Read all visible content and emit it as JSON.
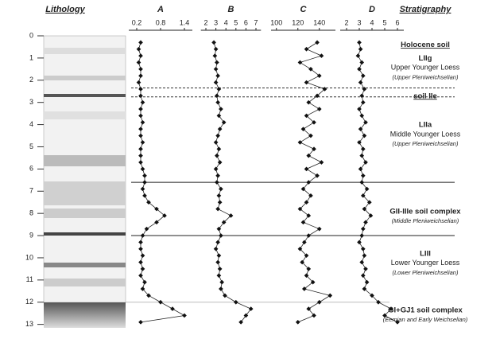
{
  "lithology_title": "Lithology",
  "stratigraphy_title": "Stratigraphy",
  "depth": {
    "ylim": [
      0,
      13.3
    ],
    "yticks": [
      0,
      1,
      2,
      3,
      4,
      5,
      6,
      7,
      8,
      9,
      10,
      11,
      12,
      13
    ],
    "values": [
      0.3,
      0.6,
      0.9,
      1.2,
      1.5,
      1.8,
      2.1,
      2.4,
      2.7,
      3.0,
      3.3,
      3.6,
      3.9,
      4.2,
      4.5,
      4.8,
      5.1,
      5.4,
      5.7,
      6.0,
      6.3,
      6.6,
      6.9,
      7.2,
      7.5,
      7.8,
      8.1,
      8.4,
      8.7,
      9.0,
      9.3,
      9.6,
      9.9,
      10.2,
      10.5,
      10.8,
      11.1,
      11.4,
      11.7,
      12.0,
      12.3,
      12.6,
      12.9
    ]
  },
  "chart_data": [
    {
      "type": "line",
      "title": "A",
      "xlim": [
        0,
        1.6
      ],
      "xticks": [
        0.2,
        0.8,
        1.4
      ],
      "values": [
        0.3,
        0.25,
        0.3,
        0.25,
        0.3,
        0.3,
        0.25,
        0.3,
        0.3,
        0.35,
        0.3,
        0.3,
        0.35,
        0.3,
        0.3,
        0.35,
        0.3,
        0.3,
        0.3,
        0.35,
        0.4,
        0.4,
        0.35,
        0.4,
        0.5,
        0.7,
        0.9,
        0.7,
        0.45,
        0.35,
        0.3,
        0.3,
        0.35,
        0.3,
        0.35,
        0.3,
        0.4,
        0.35,
        0.5,
        0.8,
        1.1,
        1.4,
        0.3
      ]
    },
    {
      "type": "line",
      "title": "B",
      "xlim": [
        1.5,
        7.5
      ],
      "xticks": [
        2,
        3,
        4,
        5,
        6,
        7
      ],
      "values": [
        2.8,
        3.0,
        2.9,
        3.1,
        3.0,
        3.2,
        3.0,
        3.3,
        3.1,
        3.2,
        3.5,
        3.3,
        3.8,
        3.4,
        3.2,
        3.0,
        3.3,
        3.1,
        3.4,
        3.0,
        3.2,
        3.1,
        3.5,
        3.3,
        3.4,
        3.2,
        4.5,
        3.8,
        3.3,
        3.5,
        3.2,
        3.0,
        3.3,
        3.2,
        3.4,
        3.3,
        3.6,
        3.5,
        3.9,
        5.0,
        6.5,
        6.0,
        5.5
      ]
    },
    {
      "type": "line",
      "title": "C",
      "xlim": [
        95,
        155
      ],
      "xticks": [
        100,
        120,
        140
      ],
      "values": [
        138,
        128,
        142,
        122,
        132,
        140,
        128,
        145,
        138,
        130,
        140,
        128,
        135,
        125,
        132,
        122,
        135,
        130,
        142,
        128,
        138,
        130,
        125,
        132,
        128,
        122,
        130,
        125,
        140,
        130,
        126,
        122,
        128,
        124,
        130,
        128,
        134,
        126,
        150,
        140,
        130,
        135,
        120
      ]
    },
    {
      "type": "line",
      "title": "D",
      "xlim": [
        1.5,
        6.5
      ],
      "xticks": [
        2,
        3,
        4,
        5,
        6
      ],
      "values": [
        3.0,
        3.1,
        2.9,
        3.2,
        3.0,
        3.3,
        3.1,
        3.4,
        3.2,
        3.3,
        3.0,
        3.2,
        3.5,
        3.1,
        3.4,
        3.0,
        3.3,
        3.2,
        3.5,
        3.1,
        3.3,
        3.2,
        3.6,
        3.3,
        3.8,
        3.4,
        3.9,
        3.5,
        3.3,
        3.2,
        3.0,
        3.3,
        3.4,
        3.2,
        3.5,
        3.3,
        3.6,
        3.4,
        4.0,
        4.5,
        5.5,
        5.0,
        6.0
      ]
    }
  ],
  "boundaries": [
    {
      "depth": 2.35,
      "style": "dashed"
    },
    {
      "depth": 2.75,
      "style": "dashed"
    },
    {
      "depth": 6.6,
      "style": "solid"
    },
    {
      "depth": 9.0,
      "style": "solid"
    },
    {
      "depth": 12.0,
      "style": "grey"
    }
  ],
  "stratigraphy": [
    {
      "depth": 0.2,
      "name": "Holocene soil"
    },
    {
      "depth": 0.8,
      "name": "LIIg",
      "unit": "Upper Younger Loess",
      "period": "(Upper Pleniweichselian)"
    },
    {
      "depth": 2.5,
      "name": "soil IIe"
    },
    {
      "depth": 3.8,
      "name": "LIIa",
      "unit": "Middle Younger Loess",
      "period": "(Upper Pleniweichselian)"
    },
    {
      "depth": 7.7,
      "name": "GII-IIIe soil complex",
      "period": "(Middle Pleniweichselian)"
    },
    {
      "depth": 9.6,
      "name": "LIII",
      "unit": "Lower Younger Loess",
      "period": "(Lower Pleniweichselian)"
    },
    {
      "depth": 12.15,
      "name": "GI+GJ1 soil complex",
      "period": "(Eemian and Early Weichselian)"
    }
  ]
}
